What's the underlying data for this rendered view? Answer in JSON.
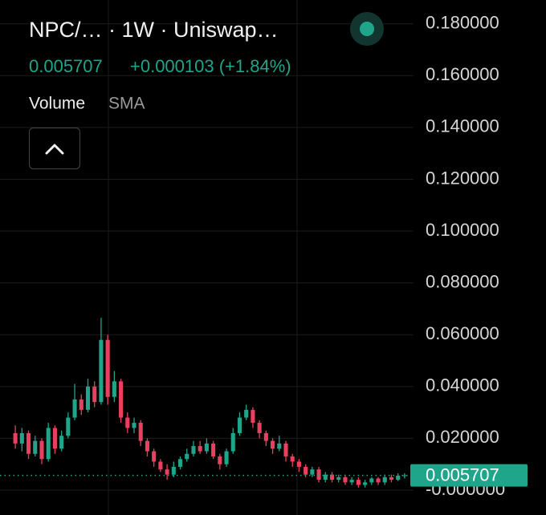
{
  "chart_data": {
    "type": "candlestick",
    "title": "NPC/… · 1W · Uniswap…",
    "legend_price": "0.005707",
    "legend_change": "+0.000103 (+1.84%)",
    "indicator_name": "Volume",
    "indicator_setting": "SMA",
    "up_color": "#1fa58a",
    "down_color": "#e8405e",
    "grid": true,
    "ylim": [
      -0.0096,
      0.1892
    ],
    "yticks": [
      {
        "value": 0.18,
        "label": "0.180000"
      },
      {
        "value": 0.16,
        "label": "0.160000"
      },
      {
        "value": 0.14,
        "label": "0.140000"
      },
      {
        "value": 0.12,
        "label": "0.120000"
      },
      {
        "value": 0.1,
        "label": "0.100000"
      },
      {
        "value": 0.08,
        "label": "0.080000"
      },
      {
        "value": 0.06,
        "label": "0.060000"
      },
      {
        "value": 0.04,
        "label": "0.040000"
      },
      {
        "value": 0.02,
        "label": "0.020000"
      },
      {
        "value": 0,
        "label": "-0.000000"
      }
    ],
    "last_price": 0.005707,
    "open": [
      0.022,
      0.018,
      0.022,
      0.014,
      0.019,
      0.012,
      0.024,
      0.016,
      0.021,
      0.028,
      0.035,
      0.031,
      0.04,
      0.034,
      0.058,
      0.036,
      0.042,
      0.028,
      0.024,
      0.026,
      0.019,
      0.015,
      0.011,
      0.008,
      0.006,
      0.009,
      0.012,
      0.014,
      0.017,
      0.015,
      0.018,
      0.013,
      0.01,
      0.015,
      0.022,
      0.028,
      0.031,
      0.026,
      0.022,
      0.019,
      0.016,
      0.018,
      0.013,
      0.011,
      0.009,
      0.006,
      0.008,
      0.004,
      0.006,
      0.004,
      0.005,
      0.003,
      0.004,
      0.002,
      0.003,
      0.0045,
      0.003,
      0.005,
      0.004,
      0.0056
    ],
    "high": [
      0.025,
      0.024,
      0.023,
      0.021,
      0.02,
      0.026,
      0.025,
      0.023,
      0.03,
      0.041,
      0.037,
      0.043,
      0.042,
      0.0665,
      0.06,
      0.046,
      0.043,
      0.03,
      0.028,
      0.027,
      0.02,
      0.016,
      0.012,
      0.01,
      0.011,
      0.013,
      0.016,
      0.019,
      0.019,
      0.02,
      0.019,
      0.014,
      0.016,
      0.024,
      0.03,
      0.033,
      0.032,
      0.027,
      0.023,
      0.02,
      0.021,
      0.019,
      0.014,
      0.012,
      0.01,
      0.009,
      0.009,
      0.007,
      0.007,
      0.006,
      0.006,
      0.005,
      0.005,
      0.004,
      0.005,
      0.005,
      0.006,
      0.006,
      0.0065,
      0.0065
    ],
    "low": [
      0.016,
      0.015,
      0.012,
      0.013,
      0.01,
      0.011,
      0.014,
      0.015,
      0.02,
      0.027,
      0.029,
      0.03,
      0.032,
      0.033,
      0.033,
      0.034,
      0.026,
      0.022,
      0.022,
      0.017,
      0.013,
      0.009,
      0.007,
      0.004,
      0.005,
      0.008,
      0.011,
      0.013,
      0.014,
      0.014,
      0.012,
      0.008,
      0.009,
      0.014,
      0.021,
      0.027,
      0.024,
      0.02,
      0.017,
      0.014,
      0.015,
      0.011,
      0.009,
      0.007,
      0.005,
      0.005,
      0.003,
      0.003,
      0.003,
      0.003,
      0.002,
      0.002,
      0.001,
      0.001,
      0.002,
      0.002,
      0.002,
      0.003,
      0.0035,
      0.0045
    ],
    "close": [
      0.018,
      0.022,
      0.014,
      0.019,
      0.012,
      0.024,
      0.016,
      0.021,
      0.028,
      0.035,
      0.031,
      0.04,
      0.034,
      0.058,
      0.036,
      0.042,
      0.028,
      0.024,
      0.026,
      0.019,
      0.015,
      0.011,
      0.008,
      0.006,
      0.009,
      0.012,
      0.014,
      0.017,
      0.015,
      0.018,
      0.013,
      0.01,
      0.015,
      0.022,
      0.028,
      0.031,
      0.026,
      0.022,
      0.019,
      0.016,
      0.018,
      0.013,
      0.011,
      0.009,
      0.006,
      0.008,
      0.004,
      0.006,
      0.004,
      0.005,
      0.003,
      0.004,
      0.002,
      0.003,
      0.0045,
      0.003,
      0.005,
      0.004,
      0.0056,
      0.005707
    ]
  }
}
